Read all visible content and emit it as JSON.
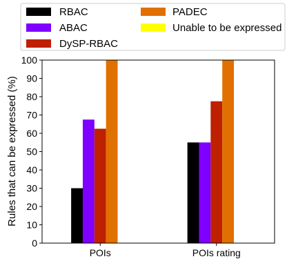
{
  "chart_data": {
    "type": "bar",
    "title": "",
    "xlabel": "",
    "ylabel": "Rules that can be expressed (%)",
    "ylim": [
      0,
      100
    ],
    "yticks": [
      0,
      10,
      20,
      30,
      40,
      50,
      60,
      70,
      80,
      90,
      100
    ],
    "categories": [
      "POIs",
      "POIs rating"
    ],
    "series": [
      {
        "name": "RBAC",
        "color": "#000000",
        "values": [
          30,
          55
        ]
      },
      {
        "name": "ABAC",
        "color": "#7f00ff",
        "values": [
          67.5,
          55
        ]
      },
      {
        "name": "DySP-RBAC",
        "color": "#bf2000",
        "values": [
          62.5,
          77.5
        ]
      },
      {
        "name": "PADEC",
        "color": "#e07000",
        "values": [
          100,
          100
        ]
      },
      {
        "name": "Unable to be expressed",
        "color": "#ffff00",
        "values": [
          0,
          0
        ]
      }
    ],
    "grid": false,
    "legend_position": "top"
  }
}
